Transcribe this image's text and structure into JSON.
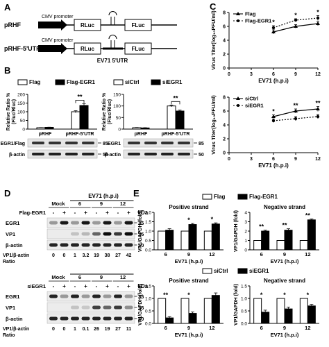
{
  "panels": {
    "A": {
      "letter": "A",
      "constructs": [
        {
          "name": "pRHF",
          "promoter": "CMV promoter",
          "gene1": "RLuc",
          "gene2": "FLuc"
        },
        {
          "name": "pRHF-5'UTR",
          "promoter": "CMV promoter",
          "gene1": "RLuc",
          "gene2": "FLuc",
          "insert": "EV71 5'UTR"
        }
      ]
    },
    "B": {
      "letter": "B",
      "ylabel": "Relative Ratio % (Fluc/Rluc)",
      "left": {
        "legend": [
          "Flag",
          "Flag-EGR1"
        ],
        "categories": [
          "pRHF",
          "pRHF-5'UTR"
        ],
        "ylim": [
          0,
          200
        ],
        "yticks": [
          0,
          50,
          100,
          150,
          200
        ],
        "series": [
          {
            "name": "Flag",
            "values": [
              8,
              100
            ],
            "err": [
              1,
              6
            ]
          },
          {
            "name": "Flag-EGR1",
            "values": [
              10,
              136
            ],
            "err": [
              1,
              10
            ]
          }
        ],
        "sig": "**",
        "blot": [
          {
            "label": "EGR1/Flag",
            "kda": "85"
          },
          {
            "label": "β-actin",
            "kda": "50"
          }
        ]
      },
      "right": {
        "legend": [
          "siCtrl",
          "siEGR1"
        ],
        "categories": [
          "pRHF",
          "pRHF-5'UTR"
        ],
        "ylim": [
          0,
          150
        ],
        "yticks": [
          0,
          50,
          100,
          150
        ],
        "series": [
          {
            "name": "siCtrl",
            "values": [
              6,
              100
            ],
            "err": [
              1,
              4
            ]
          },
          {
            "name": "siEGR1",
            "values": [
              5,
              78
            ],
            "err": [
              1,
              4
            ]
          }
        ],
        "sig": "**",
        "blot": [
          {
            "label": "EGR1",
            "kda": "85"
          },
          {
            "label": "β-actin",
            "kda": "50"
          }
        ]
      }
    },
    "C": {
      "letter": "C",
      "ylabel": "Virus Titer(log₁₀PFU/ml)",
      "xlabel": "EV71 (h.p.i)",
      "top": {
        "legend": [
          "Flag",
          "Flag-EGR1"
        ],
        "x": [
          6,
          9,
          12
        ],
        "xticks": [
          0,
          3,
          6,
          9,
          12
        ],
        "ylim": [
          0,
          8
        ],
        "yticks": [
          0,
          2,
          4,
          6,
          8
        ],
        "series": [
          {
            "name": "Flag",
            "values": [
              5.2,
              6.0,
              6.4
            ],
            "err": [
              0.3,
              0.25,
              0.3
            ]
          },
          {
            "name": "Flag-EGR1",
            "values": [
              5.8,
              6.9,
              7.2
            ],
            "err": [
              0.3,
              0.2,
              0.35
            ]
          }
        ],
        "sig": [
          "*",
          "*",
          "*"
        ]
      },
      "bottom": {
        "legend": [
          "siCtrl",
          "siEGR1"
        ],
        "x": [
          6,
          9,
          12
        ],
        "xticks": [
          0,
          3,
          6,
          9,
          12
        ],
        "ylim": [
          0,
          8
        ],
        "yticks": [
          0,
          2,
          4,
          6,
          8
        ],
        "series": [
          {
            "name": "siCtrl",
            "values": [
              5.2,
              6.0,
              6.3
            ],
            "err": [
              0.25,
              0.3,
              0.35
            ]
          },
          {
            "name": "siEGR1",
            "values": [
              4.6,
              4.9,
              5.2
            ],
            "err": [
              0.25,
              0.3,
              0.3
            ]
          }
        ],
        "sig": [
          "*",
          "**",
          "**"
        ]
      }
    },
    "D": {
      "letter": "D",
      "time_label": "EV71 (h.p.i)",
      "kda_label": "kDa",
      "ratio_label": "VP1/β-actin",
      "ratio_suffix": "Ratio",
      "mock": "Mock",
      "times": [
        "6",
        "9",
        "12"
      ],
      "pm": [
        "-",
        "+",
        "-",
        "+",
        "-",
        "+",
        "-",
        "+"
      ],
      "top": {
        "row_label": "Flag-EGR1",
        "rows": [
          {
            "label": "EGR1",
            "kda": "85"
          },
          {
            "label": "VP1",
            "kda": "35"
          },
          {
            "label": "β-actin",
            "kda": "50"
          }
        ],
        "ratios": [
          "0",
          "0",
          "1",
          "3.2",
          "19",
          "38",
          "27",
          "42"
        ]
      },
      "bottom": {
        "row_label": "siEGR1",
        "rows": [
          {
            "label": "EGR1",
            "kda": "85"
          },
          {
            "label": "VP1",
            "kda": "35"
          },
          {
            "label": "β-actin",
            "kda": "50"
          }
        ],
        "ratios": [
          "0",
          "0",
          "1",
          "0.1",
          "26",
          "19",
          "27",
          "11"
        ]
      }
    },
    "E": {
      "letter": "E",
      "legend_top": [
        "Flag",
        "Flag-EGR1"
      ],
      "legend_bottom": [
        "siCtrl",
        "siEGR1"
      ],
      "ylabel": "VP1/GAPDH (fold)",
      "xlabel": "EV71 (h.p.i)",
      "charts": [
        {
          "title": "Positive strand",
          "categories": [
            "6",
            "9",
            "12"
          ],
          "ylim": [
            0,
            2.0
          ],
          "yticks": [
            0,
            0.5,
            1.0,
            1.5,
            2.0
          ],
          "series": [
            {
              "name": "Flag",
              "values": [
                1,
                1,
                1
              ],
              "err": [
                0,
                0,
                0
              ]
            },
            {
              "name": "Flag-EGR1",
              "values": [
                1.05,
                1.35,
                1.38
              ],
              "err": [
                0.08,
                0.06,
                0.06
              ]
            }
          ],
          "sig": [
            "",
            "*",
            "*"
          ]
        },
        {
          "title": "Negative strand",
          "categories": [
            "6",
            "9",
            "12"
          ],
          "ylim": [
            0,
            4
          ],
          "yticks": [
            0,
            1,
            2,
            3,
            4
          ],
          "series": [
            {
              "name": "Flag",
              "values": [
                1,
                1,
                1
              ],
              "err": [
                0,
                0,
                0
              ]
            },
            {
              "name": "Flag-EGR1",
              "values": [
                2.0,
                2.1,
                3.2
              ],
              "err": [
                0.1,
                0.15,
                0.1
              ]
            }
          ],
          "sig": [
            "**",
            "**",
            "**"
          ]
        },
        {
          "title": "Positive strand",
          "categories": [
            "6",
            "9",
            "12"
          ],
          "ylim": [
            0,
            1.5
          ],
          "yticks": [
            0,
            0.5,
            1.0,
            1.5
          ],
          "series": [
            {
              "name": "siCtrl",
              "values": [
                1,
                1,
                1
              ],
              "err": [
                0,
                0,
                0
              ]
            },
            {
              "name": "siEGR1",
              "values": [
                0.22,
                0.4,
                1.12
              ],
              "err": [
                0.05,
                0.06,
                0.1
              ]
            }
          ],
          "sig": [
            "**",
            "*",
            ""
          ]
        },
        {
          "title": "Negative strand",
          "categories": [
            "6",
            "9",
            "12"
          ],
          "ylim": [
            0,
            1.5
          ],
          "yticks": [
            0,
            0.5,
            1.0,
            1.5
          ],
          "series": [
            {
              "name": "siCtrl",
              "values": [
                1,
                1,
                1
              ],
              "err": [
                0,
                0,
                0
              ]
            },
            {
              "name": "siEGR1",
              "values": [
                0.45,
                0.58,
                0.7
              ],
              "err": [
                0.08,
                0.07,
                0.06
              ]
            }
          ],
          "sig": [
            "*",
            "*",
            "*"
          ]
        }
      ]
    }
  },
  "chart_data": [
    {
      "type": "bar",
      "categories": [
        "pRHF",
        "pRHF-5'UTR"
      ],
      "series": [
        {
          "name": "Flag",
          "values": [
            8,
            100
          ]
        },
        {
          "name": "Flag-EGR1",
          "values": [
            10,
            136
          ]
        }
      ],
      "ylabel": "Relative Ratio % (Fluc/Rluc)",
      "ylim": [
        0,
        200
      ]
    },
    {
      "type": "bar",
      "categories": [
        "pRHF",
        "pRHF-5'UTR"
      ],
      "series": [
        {
          "name": "siCtrl",
          "values": [
            6,
            100
          ]
        },
        {
          "name": "siEGR1",
          "values": [
            5,
            78
          ]
        }
      ],
      "ylabel": "Relative Ratio % (Fluc/Rluc)",
      "ylim": [
        0,
        150
      ]
    },
    {
      "type": "line",
      "x": [
        6,
        9,
        12
      ],
      "series": [
        {
          "name": "Flag",
          "values": [
            5.2,
            6.0,
            6.4
          ]
        },
        {
          "name": "Flag-EGR1",
          "values": [
            5.8,
            6.9,
            7.2
          ]
        }
      ],
      "xlabel": "EV71 (h.p.i)",
      "ylabel": "Virus Titer(log10PFU/ml)",
      "ylim": [
        0,
        8
      ]
    },
    {
      "type": "line",
      "x": [
        6,
        9,
        12
      ],
      "series": [
        {
          "name": "siCtrl",
          "values": [
            5.2,
            6.0,
            6.3
          ]
        },
        {
          "name": "siEGR1",
          "values": [
            4.6,
            4.9,
            5.2
          ]
        }
      ],
      "xlabel": "EV71 (h.p.i)",
      "ylabel": "Virus Titer(log10PFU/ml)",
      "ylim": [
        0,
        8
      ]
    },
    {
      "type": "bar",
      "title": "Positive strand",
      "categories": [
        "6",
        "9",
        "12"
      ],
      "series": [
        {
          "name": "Flag",
          "values": [
            1,
            1,
            1
          ]
        },
        {
          "name": "Flag-EGR1",
          "values": [
            1.05,
            1.35,
            1.38
          ]
        }
      ],
      "xlabel": "EV71 (h.p.i)",
      "ylabel": "VP1/GAPDH (fold)",
      "ylim": [
        0,
        2.0
      ]
    },
    {
      "type": "bar",
      "title": "Negative strand",
      "categories": [
        "6",
        "9",
        "12"
      ],
      "series": [
        {
          "name": "Flag",
          "values": [
            1,
            1,
            1
          ]
        },
        {
          "name": "Flag-EGR1",
          "values": [
            2.0,
            2.1,
            3.2
          ]
        }
      ],
      "xlabel": "EV71 (h.p.i)",
      "ylabel": "VP1/GAPDH (fold)",
      "ylim": [
        0,
        4
      ]
    },
    {
      "type": "bar",
      "title": "Positive strand",
      "categories": [
        "6",
        "9",
        "12"
      ],
      "series": [
        {
          "name": "siCtrl",
          "values": [
            1,
            1,
            1
          ]
        },
        {
          "name": "siEGR1",
          "values": [
            0.22,
            0.4,
            1.12
          ]
        }
      ],
      "xlabel": "EV71 (h.p.i)",
      "ylabel": "VP1/GAPDH (fold)",
      "ylim": [
        0,
        1.5
      ]
    },
    {
      "type": "bar",
      "title": "Negative strand",
      "categories": [
        "6",
        "9",
        "12"
      ],
      "series": [
        {
          "name": "siCtrl",
          "values": [
            1,
            1,
            1
          ]
        },
        {
          "name": "siEGR1",
          "values": [
            0.45,
            0.58,
            0.7
          ]
        }
      ],
      "xlabel": "EV71 (h.p.i)",
      "ylabel": "VP1/GAPDH (fold)",
      "ylim": [
        0,
        1.5
      ]
    }
  ]
}
